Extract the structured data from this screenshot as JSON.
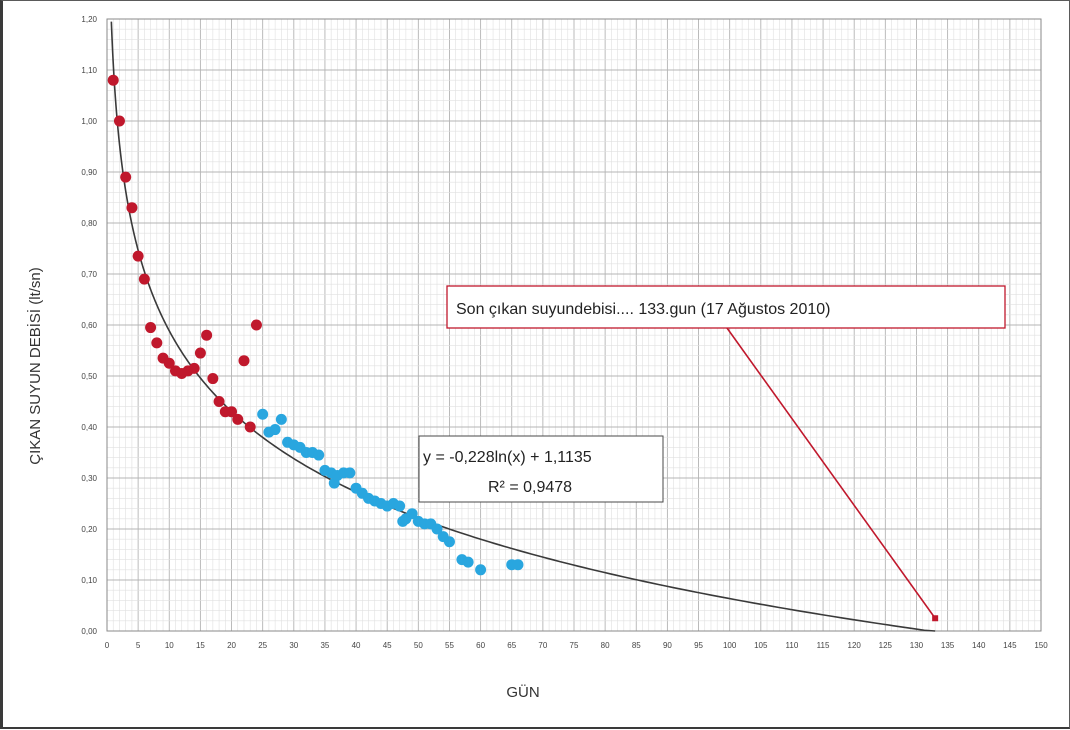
{
  "chart_data": {
    "type": "scatter",
    "title": "",
    "xlabel": "GÜN",
    "ylabel": "ÇIKAN SUYUN DEBİSİ (lt/sn)",
    "xlim": [
      0,
      150
    ],
    "ylim": [
      0,
      1.2
    ],
    "grid": true,
    "x_ticks": [
      0,
      5,
      10,
      15,
      20,
      25,
      30,
      35,
      40,
      45,
      50,
      55,
      60,
      65,
      70,
      75,
      80,
      85,
      90,
      95,
      100,
      105,
      110,
      115,
      120,
      125,
      130,
      135,
      140,
      145,
      150
    ],
    "x_tick_labels": [
      "0",
      "5",
      "10",
      "15",
      "20",
      "25",
      "30",
      "35",
      "40",
      "45",
      "50",
      "55",
      "60",
      "65",
      "70",
      "75",
      "80",
      "85",
      "90",
      "95",
      "100",
      "105",
      "110",
      "115",
      "120",
      "125",
      "130",
      "135",
      "140",
      "145",
      "150"
    ],
    "y_ticks": [
      0,
      0.1,
      0.2,
      0.3,
      0.4,
      0.5,
      0.6,
      0.7,
      0.8,
      0.9,
      1.0,
      1.1,
      1.2
    ],
    "y_tick_labels": [
      "0,00",
      "0,10",
      "0,20",
      "0,30",
      "0,40",
      "0,50",
      "0,60",
      "0,70",
      "0,80",
      "0,90",
      "1,00",
      "1,10",
      "1,20"
    ],
    "series": [
      {
        "color": "#c0182c",
        "points": [
          [
            1,
            1.08
          ],
          [
            2,
            1.0
          ],
          [
            3,
            0.89
          ],
          [
            4,
            0.83
          ],
          [
            5,
            0.735
          ],
          [
            6,
            0.69
          ],
          [
            7,
            0.595
          ],
          [
            8,
            0.565
          ],
          [
            9,
            0.535
          ],
          [
            10,
            0.525
          ],
          [
            11,
            0.51
          ],
          [
            12,
            0.505
          ],
          [
            13,
            0.51
          ],
          [
            14,
            0.515
          ],
          [
            15,
            0.545
          ],
          [
            16,
            0.58
          ],
          [
            17,
            0.495
          ],
          [
            18,
            0.45
          ],
          [
            19,
            0.43
          ],
          [
            20,
            0.43
          ],
          [
            21,
            0.415
          ],
          [
            22,
            0.53
          ],
          [
            23,
            0.4
          ],
          [
            24,
            0.6
          ]
        ]
      },
      {
        "color": "#29a6df",
        "points": [
          [
            25,
            0.425
          ],
          [
            26,
            0.39
          ],
          [
            27,
            0.395
          ],
          [
            28,
            0.415
          ],
          [
            29,
            0.37
          ],
          [
            30,
            0.365
          ],
          [
            31,
            0.36
          ],
          [
            32,
            0.35
          ],
          [
            33,
            0.35
          ],
          [
            34,
            0.345
          ],
          [
            35,
            0.315
          ],
          [
            36,
            0.31
          ],
          [
            36.5,
            0.29
          ],
          [
            37,
            0.305
          ],
          [
            38,
            0.31
          ],
          [
            39,
            0.31
          ],
          [
            40,
            0.28
          ],
          [
            41,
            0.27
          ],
          [
            42,
            0.26
          ],
          [
            43,
            0.255
          ],
          [
            44,
            0.25
          ],
          [
            45,
            0.245
          ],
          [
            46,
            0.25
          ],
          [
            47,
            0.245
          ],
          [
            47.5,
            0.215
          ],
          [
            48,
            0.22
          ],
          [
            49,
            0.23
          ],
          [
            50,
            0.215
          ],
          [
            51,
            0.21
          ],
          [
            52,
            0.21
          ],
          [
            53,
            0.2
          ],
          [
            54,
            0.185
          ],
          [
            55,
            0.175
          ],
          [
            57,
            0.14
          ],
          [
            58,
            0.135
          ],
          [
            60,
            0.12
          ],
          [
            65,
            0.13
          ],
          [
            66,
            0.13
          ]
        ]
      }
    ],
    "trendline": {
      "type": "logarithmic",
      "a": -0.228,
      "b": 1.1135,
      "x_range": [
        0.7,
        133
      ],
      "color": "#3a3a3a"
    },
    "annotations": {
      "equation": "y = -0,228ln(x) + 1,1135",
      "r_squared": "R² = 0,9478",
      "callout_text": "Son çıkan suyundebisi.... 133.gun (17 Ağustos 2010)",
      "callout_point": [
        133,
        0.025
      ],
      "callout_color": "#c0182c"
    }
  }
}
